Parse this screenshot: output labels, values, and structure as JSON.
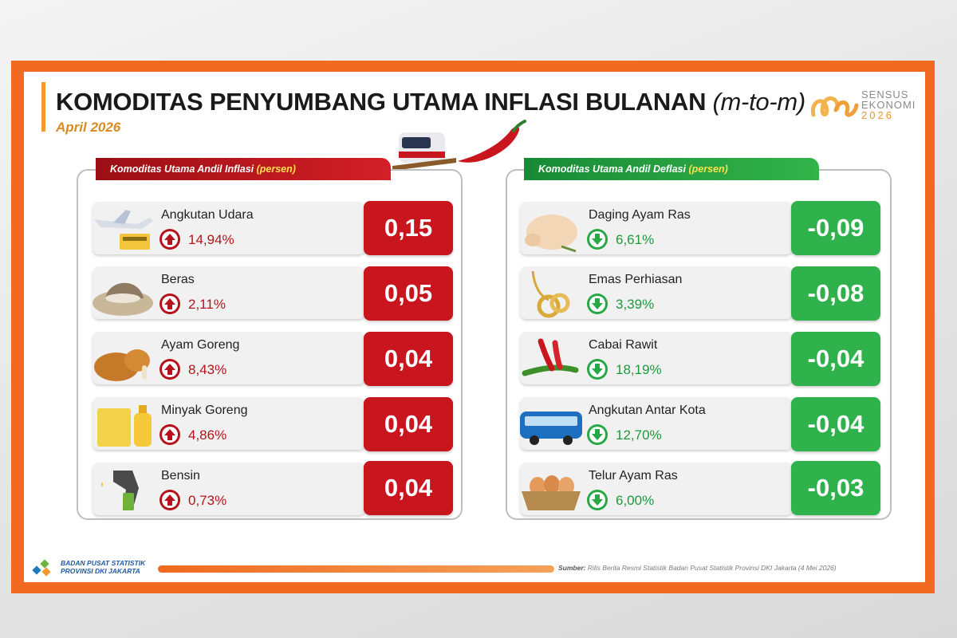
{
  "header": {
    "title": "KOMODITAS PENYUMBANG UTAMA INFLASI BULANAN",
    "title_suffix": "(m-to-m)",
    "period": "April 2026"
  },
  "brand": {
    "line1": "SENSUS",
    "line2": "EKONOMI",
    "year": "2026"
  },
  "inflasi": {
    "tab_label": "Komoditas Utama Andil Inflasi",
    "tab_unit": "(persen)",
    "color": "#c8151e",
    "items": [
      {
        "name": "Angkutan Udara",
        "pct": "14,94%",
        "andil": "0,15",
        "icon": "airplane-ticket-icon"
      },
      {
        "name": "Beras",
        "pct": "2,11%",
        "andil": "0,05",
        "icon": "rice-sack-icon"
      },
      {
        "name": "Ayam Goreng",
        "pct": "8,43%",
        "andil": "0,04",
        "icon": "fried-chicken-icon"
      },
      {
        "name": "Minyak Goreng",
        "pct": "4,86%",
        "andil": "0,04",
        "icon": "cooking-oil-icon"
      },
      {
        "name": "Bensin",
        "pct": "0,73%",
        "andil": "0,04",
        "icon": "fuel-nozzle-icon"
      }
    ]
  },
  "deflasi": {
    "tab_label": "Komoditas Utama Andil Deflasi",
    "tab_unit": "(persen)",
    "color": "#2fb14b",
    "items": [
      {
        "name": "Daging Ayam Ras",
        "pct": "6,61%",
        "andil": "-0,09",
        "icon": "raw-chicken-icon"
      },
      {
        "name": "Emas Perhiasan",
        "pct": "3,39%",
        "andil": "-0,08",
        "icon": "gold-jewelry-icon"
      },
      {
        "name": "Cabai Rawit",
        "pct": "18,19%",
        "andil": "-0,04",
        "icon": "chili-icon"
      },
      {
        "name": "Angkutan Antar Kota",
        "pct": "12,70%",
        "andil": "-0,04",
        "icon": "bus-icon"
      },
      {
        "name": "Telur Ayam Ras",
        "pct": "6,00%",
        "andil": "-0,03",
        "icon": "egg-basket-icon"
      }
    ]
  },
  "footer": {
    "org_line1": "BADAN PUSAT STATISTIK",
    "org_line2": "PROVINSI DKI JAKARTA",
    "source_label": "Sumber:",
    "source_text": "Rilis Berita Resmi Statistik Badan Pusat Statistik Provinsi DKI Jakarta (4 Mei 2026)"
  }
}
